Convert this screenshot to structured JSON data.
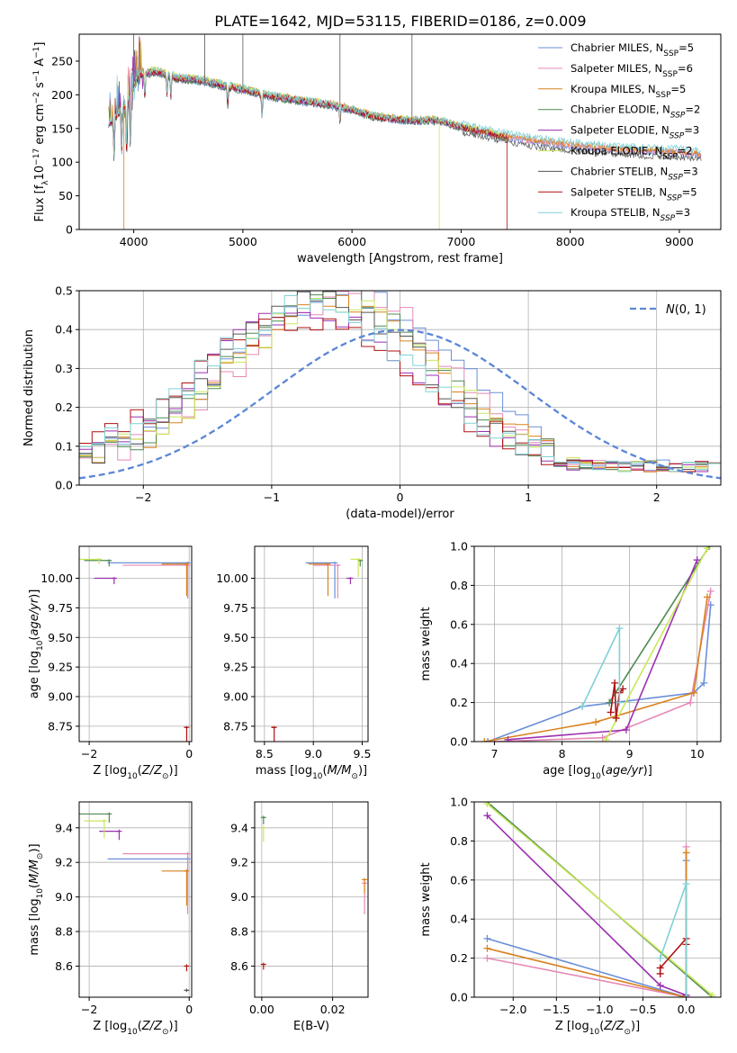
{
  "title": "PLATE=1642, MJD=53115, FIBERID=0186, z=0.009",
  "colors": {
    "series": [
      "#6a8fd8",
      "#e589b6",
      "#d9821e",
      "#4f8a52",
      "#9b2fb0",
      "#c9e85a",
      "#555555",
      "#b01010",
      "#7fd1d6"
    ],
    "gaussian": "#5b86d6",
    "grid": "#b0b0b0"
  },
  "legend_spectrum": [
    {
      "pre": "Chabrier MILES, N",
      "sub": "SSP",
      "post": "=5"
    },
    {
      "pre": "Salpeter MILES, N",
      "sub": "SSP",
      "post": "=6"
    },
    {
      "pre": "Kroupa MILES, N",
      "sub": "SSP",
      "post": "=5"
    },
    {
      "pre": "Chabrier ELODIE, N",
      "sub": "SSP",
      "post": "=2"
    },
    {
      "pre": "Salpeter ELODIE, N",
      "sub": "SSP",
      "post": "=3"
    },
    {
      "pre": "Kroupa ELODIE, N",
      "sub": "SSP",
      "post": "=2"
    },
    {
      "pre": "Chabrier STELIB, N",
      "sub": "SSP",
      "post": "=3"
    },
    {
      "pre": "Salpeter STELIB, N",
      "sub": "SSP",
      "post": "=5"
    },
    {
      "pre": "Kroupa STELIB, N",
      "sub": "SSP",
      "post": "=3"
    }
  ],
  "chart_data": [
    {
      "id": "spectrum",
      "type": "line",
      "xlabel": "wavelength [Angstrom, rest frame]",
      "ylabel_parts": {
        "a": "Flux [f",
        "b": "λ",
        "c": "10",
        "d": "−17",
        "e": " erg cm",
        "f": "−2",
        "g": " s",
        "h": "−1",
        "i": " A",
        "j": "−1",
        "k": "]"
      },
      "xlim": [
        3500,
        9380
      ],
      "ylim": [
        0,
        290
      ],
      "xticks": [
        4000,
        5000,
        6000,
        7000,
        8000,
        9000
      ],
      "yticks": [
        0,
        50,
        100,
        150,
        200,
        250
      ],
      "grid": false,
      "legend": "top-right",
      "continuum_anchors": [
        [
          3770,
          155
        ],
        [
          3850,
          170
        ],
        [
          3950,
          190
        ],
        [
          4050,
          230
        ],
        [
          4200,
          235
        ],
        [
          4400,
          225
        ],
        [
          4600,
          222
        ],
        [
          4800,
          215
        ],
        [
          5000,
          208
        ],
        [
          5200,
          200
        ],
        [
          5500,
          192
        ],
        [
          5800,
          185
        ],
        [
          6000,
          178
        ],
        [
          6200,
          168
        ],
        [
          6500,
          162
        ],
        [
          6800,
          162
        ],
        [
          7000,
          152
        ],
        [
          7200,
          145
        ],
        [
          7400,
          138
        ],
        [
          7600,
          133
        ],
        [
          8000,
          125
        ],
        [
          8500,
          118
        ],
        [
          9000,
          115
        ],
        [
          9200,
          112
        ]
      ],
      "absorption_lines": [
        [
          3820,
          70
        ],
        [
          3890,
          60
        ],
        [
          3935,
          90
        ],
        [
          3970,
          85
        ],
        [
          4102,
          40
        ],
        [
          4305,
          30
        ],
        [
          4340,
          30
        ],
        [
          4861,
          30
        ],
        [
          5175,
          35
        ],
        [
          5890,
          25
        ]
      ]
    },
    {
      "id": "residuals",
      "type": "step",
      "xlabel": "(data-model)/error",
      "ylabel": "Normed distribution",
      "xlim": [
        -2.5,
        2.5
      ],
      "ylim": [
        0,
        0.5
      ],
      "xticks": [
        -2,
        -1,
        0,
        1,
        2
      ],
      "yticks": [
        0.0,
        0.1,
        0.2,
        0.3,
        0.4,
        0.5
      ],
      "grid": true,
      "legend": "top-right",
      "gaussian_label": "N(0,1)",
      "center_shift": [
        -0.45,
        -0.4,
        -0.5,
        -0.55,
        -0.7,
        -0.5,
        -0.6,
        -0.75,
        -0.7
      ],
      "width": [
        0.85,
        0.8,
        0.8,
        0.75,
        0.8,
        0.8,
        0.78,
        0.85,
        0.82
      ],
      "amp": [
        0.44,
        0.44,
        0.42,
        0.45,
        0.41,
        0.42,
        0.43,
        0.38,
        0.41
      ]
    },
    {
      "id": "age-vs-Z",
      "type": "errorbar",
      "xlabel_parts": {
        "a": "Z [log",
        "b": "10",
        "c": "(Z/Z",
        "d": "⊙",
        "e": ")]"
      },
      "ylabel_parts": {
        "a": "age  [log",
        "b": "10",
        "c": "(age/yr)]"
      },
      "xlim": [
        -2.2,
        0.05
      ],
      "ylim": [
        8.62,
        10.27
      ],
      "xticks": [
        -2,
        0
      ],
      "yticks": [
        8.75,
        9.0,
        9.25,
        9.5,
        9.75,
        10.0
      ],
      "grid": true,
      "points": [
        {
          "s": 0,
          "x": -0.03,
          "y": 10.13,
          "xl": 1.6,
          "yl": 0.3
        },
        {
          "s": 1,
          "x": -0.03,
          "y": 10.11,
          "xl": 1.3,
          "yl": 0.28
        },
        {
          "s": 2,
          "x": -0.05,
          "y": 10.12,
          "xl": 0.5,
          "yl": 0.27
        },
        {
          "s": 3,
          "x": -1.6,
          "y": 10.15,
          "xl": 0.5,
          "yl": 0.05
        },
        {
          "s": 4,
          "x": -1.5,
          "y": 10.0,
          "xl": 0.4,
          "yl": 0.05
        },
        {
          "s": 5,
          "x": -1.8,
          "y": 10.16,
          "xl": 0.4,
          "yl": 0.04
        },
        {
          "s": 7,
          "x": -0.05,
          "y": 8.74,
          "xl": 0.02,
          "yl": 0.22
        }
      ]
    },
    {
      "id": "age-vs-mass",
      "type": "errorbar",
      "xlabel_parts": {
        "a": "mass [log",
        "b": "10",
        "c": "(M/M",
        "d": "⊙",
        "e": ")]"
      },
      "xlim": [
        8.4,
        9.56
      ],
      "ylim": [
        8.62,
        10.27
      ],
      "xticks": [
        8.5,
        9.0,
        9.5
      ],
      "yticks": [
        8.75,
        9.0,
        9.25,
        9.5,
        9.75,
        10.0
      ],
      "grid": true,
      "points": [
        {
          "s": 0,
          "x": 9.22,
          "y": 10.13,
          "xl": 0.3,
          "yl": 0.3
        },
        {
          "s": 1,
          "x": 9.25,
          "y": 10.11,
          "xl": 0.25,
          "yl": 0.28
        },
        {
          "s": 2,
          "x": 9.15,
          "y": 10.12,
          "xl": 0.2,
          "yl": 0.27
        },
        {
          "s": 3,
          "x": 9.48,
          "y": 10.15,
          "xl": 0.02,
          "yl": 0.05
        },
        {
          "s": 4,
          "x": 9.38,
          "y": 10.0,
          "xl": 0.04,
          "yl": 0.05
        },
        {
          "s": 5,
          "x": 9.46,
          "y": 10.16,
          "xl": 0.08,
          "yl": 0.15
        },
        {
          "s": 7,
          "x": 8.6,
          "y": 8.74,
          "xl": 0.03,
          "yl": 0.22
        }
      ]
    },
    {
      "id": "weight-vs-age",
      "type": "line",
      "xlabel_parts": {
        "a": "age  [log",
        "b": "10",
        "c": "(age/yr)]"
      },
      "ylabel": "mass weight",
      "xlim": [
        6.7,
        10.35
      ],
      "ylim": [
        0,
        1.0
      ],
      "xticks": [
        7,
        8,
        9,
        10
      ],
      "yticks": [
        0.0,
        0.2,
        0.4,
        0.6,
        0.8,
        1.0
      ],
      "grid": true,
      "series": [
        {
          "s": 0,
          "x": [
            6.9,
            8.3,
            9.95,
            10.1,
            10.2
          ],
          "y": [
            0.0,
            0.18,
            0.25,
            0.3,
            0.7
          ]
        },
        {
          "s": 1,
          "x": [
            7.0,
            8.6,
            9.9,
            10.2
          ],
          "y": [
            0.0,
            0.02,
            0.2,
            0.77
          ]
        },
        {
          "s": 2,
          "x": [
            6.85,
            8.5,
            9.95,
            10.15
          ],
          "y": [
            0.0,
            0.1,
            0.25,
            0.74
          ]
        },
        {
          "s": 3,
          "x": [
            8.7,
            10.18
          ],
          "y": [
            0.2,
            1.0
          ]
        },
        {
          "s": 4,
          "x": [
            7.2,
            8.95,
            10.0
          ],
          "y": [
            0.01,
            0.06,
            0.93
          ]
        },
        {
          "s": 5,
          "x": [
            8.65,
            10.15
          ],
          "y": [
            0.01,
            0.99
          ]
        },
        {
          "s": 7,
          "x": [
            8.72,
            8.78,
            8.8,
            8.85,
            8.9
          ],
          "y": [
            0.15,
            0.3,
            0.12,
            0.25,
            0.27
          ]
        },
        {
          "s": 8,
          "x": [
            8.3,
            8.85,
            8.85
          ],
          "y": [
            0.18,
            0.58,
            0.2
          ]
        }
      ]
    },
    {
      "id": "mass-vs-Z",
      "type": "errorbar",
      "xlabel_parts": {
        "a": "Z [log",
        "b": "10",
        "c": "(Z/Z",
        "d": "⊙",
        "e": ")]"
      },
      "ylabel_parts": {
        "a": "mass [log",
        "b": "10",
        "c": "(M/M",
        "d": "⊙",
        "e": ")]"
      },
      "xlim": [
        -2.2,
        0.05
      ],
      "ylim": [
        8.42,
        9.55
      ],
      "xticks": [
        -2,
        0
      ],
      "yticks": [
        8.6,
        8.8,
        9.0,
        9.2,
        9.4
      ],
      "grid": true,
      "points": [
        {
          "s": 0,
          "x": -0.03,
          "y": 9.22,
          "xl": 1.6,
          "yl": 0.25
        },
        {
          "s": 1,
          "x": -0.03,
          "y": 9.25,
          "xl": 1.3,
          "yl": 0.35
        },
        {
          "s": 2,
          "x": -0.05,
          "y": 9.15,
          "xl": 0.5,
          "yl": 0.2
        },
        {
          "s": 3,
          "x": -1.6,
          "y": 9.48,
          "xl": 0.6,
          "yl": 0.05
        },
        {
          "s": 4,
          "x": -1.4,
          "y": 9.38,
          "xl": 0.4,
          "yl": 0.05
        },
        {
          "s": 5,
          "x": -1.7,
          "y": 9.44,
          "xl": 0.4,
          "yl": 0.1
        },
        {
          "s": 7,
          "x": -0.05,
          "y": 8.6,
          "xl": 0.02,
          "yl": 0.03
        },
        {
          "s": 6,
          "x": -0.05,
          "y": 8.46,
          "xl": 0.01,
          "yl": 0.01
        }
      ]
    },
    {
      "id": "mass-vs-EBV",
      "type": "errorbar",
      "xlabel": "E(B-V)",
      "xlim": [
        -0.002,
        0.03
      ],
      "ylim": [
        8.42,
        9.55
      ],
      "xticks": [
        0.0,
        0.02
      ],
      "yticks": [
        8.6,
        8.8,
        9.0,
        9.2,
        9.4
      ],
      "grid": true,
      "points": [
        {
          "s": 1,
          "x": 0.029,
          "y": 9.08,
          "xl": 0.0,
          "yl": 0.18
        },
        {
          "s": 2,
          "x": 0.029,
          "y": 9.1,
          "xl": 0.0,
          "yl": 0.08
        },
        {
          "s": 5,
          "x": 0.0005,
          "y": 9.4,
          "xl": 0.0,
          "yl": 0.08
        },
        {
          "s": 3,
          "x": 0.0005,
          "y": 9.46,
          "xl": 0.0,
          "yl": 0.04
        },
        {
          "s": 7,
          "x": 0.0005,
          "y": 8.61,
          "xl": 0.0,
          "yl": 0.03
        }
      ]
    },
    {
      "id": "weight-vs-Z",
      "type": "line",
      "xlabel_parts": {
        "a": "Z [log",
        "b": "10",
        "c": "(Z/Z",
        "d": "⊙",
        "e": ")]"
      },
      "ylabel": "mass weight",
      "xlim": [
        -2.45,
        0.4
      ],
      "ylim": [
        0,
        1.0
      ],
      "xticks": [
        -2.0,
        -1.5,
        -1.0,
        -0.5,
        0.0
      ],
      "yticks": [
        0.0,
        0.2,
        0.4,
        0.6,
        0.8,
        1.0
      ],
      "grid": true,
      "series": [
        {
          "s": 0,
          "x": [
            -2.3,
            0.0,
            0.0
          ],
          "y": [
            0.3,
            0.0,
            0.7
          ]
        },
        {
          "s": 1,
          "x": [
            -2.3,
            0.0,
            0.0
          ],
          "y": [
            0.2,
            0.0,
            0.77
          ]
        },
        {
          "s": 2,
          "x": [
            -2.3,
            0.0,
            0.0
          ],
          "y": [
            0.25,
            0.0,
            0.74
          ]
        },
        {
          "s": 3,
          "x": [
            -2.3,
            0.3
          ],
          "y": [
            1.0,
            0.0
          ]
        },
        {
          "s": 4,
          "x": [
            -2.3,
            -0.3,
            0.0
          ],
          "y": [
            0.93,
            0.06,
            0.01
          ]
        },
        {
          "s": 5,
          "x": [
            -2.3,
            0.3
          ],
          "y": [
            0.99,
            0.01
          ]
        },
        {
          "s": 7,
          "x": [
            -0.3,
            -0.3,
            0.0,
            0.0
          ],
          "y": [
            0.12,
            0.15,
            0.3,
            0.27
          ]
        },
        {
          "s": 8,
          "x": [
            -0.3,
            0.0,
            0.0
          ],
          "y": [
            0.2,
            0.58,
            0.0
          ]
        }
      ]
    }
  ]
}
